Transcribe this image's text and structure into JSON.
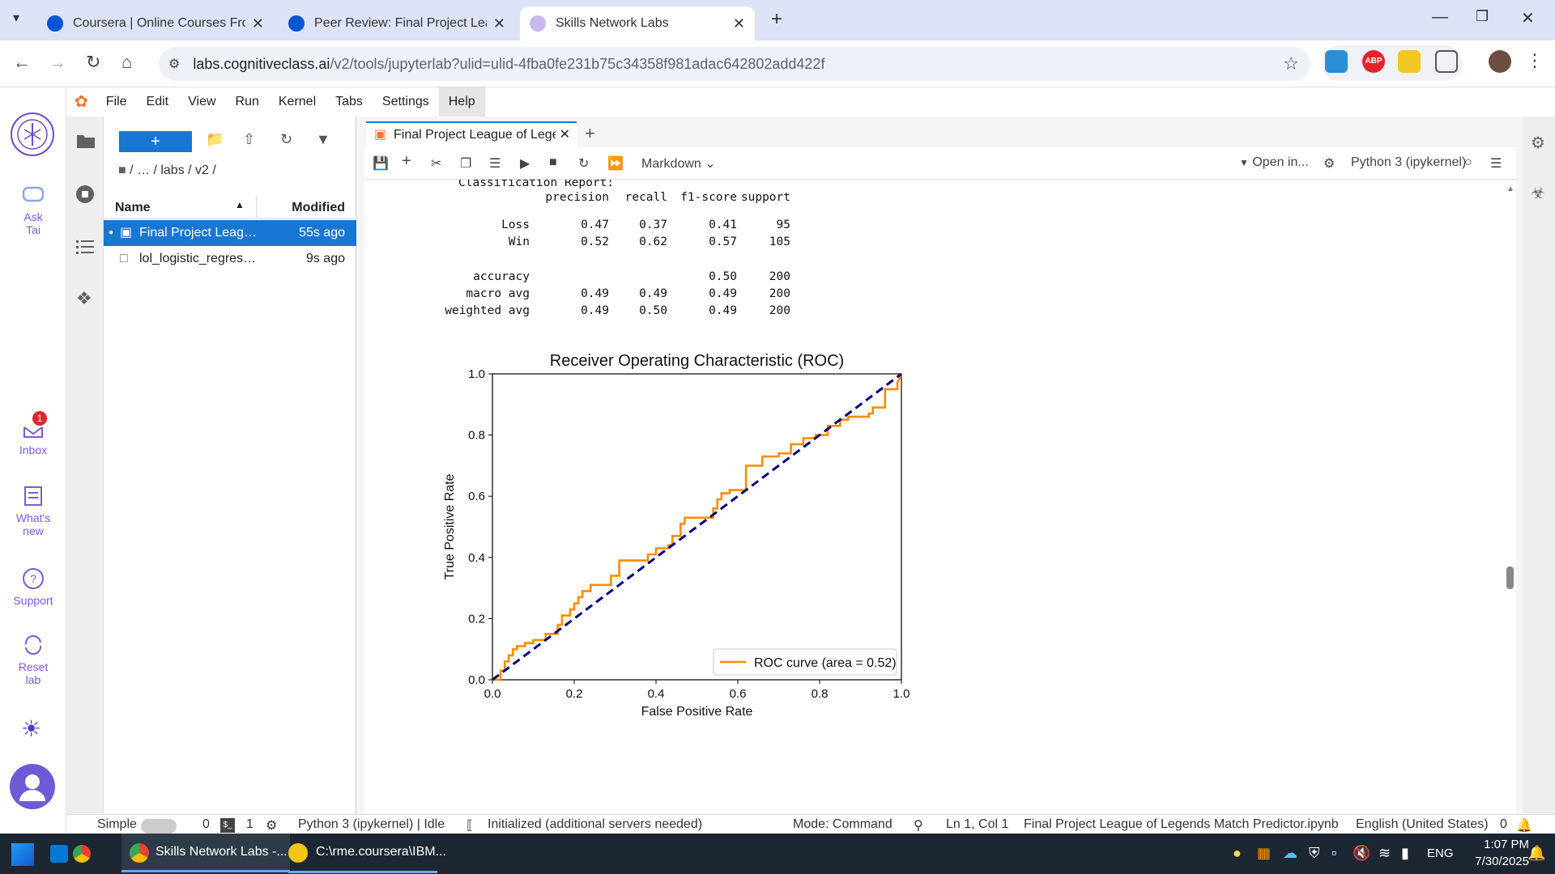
{
  "browser": {
    "tabs": [
      {
        "title": "Coursera | Online Courses From",
        "active": false
      },
      {
        "title": "Peer Review: Final Project Leagu",
        "active": false
      },
      {
        "title": "Skills Network Labs",
        "active": true
      }
    ],
    "url_host": "labs.cognitiveclass.ai",
    "url_path": "/v2/tools/jupyterlab?ulid=ulid-4fba0fe231b75c34358f981adac642802add422f"
  },
  "lab_sidebar": {
    "items": [
      {
        "label": "Ask Tai",
        "icon": "chat-bot-icon"
      },
      {
        "label": "Inbox",
        "icon": "inbox-icon",
        "badge": "1"
      },
      {
        "label": "What's new",
        "icon": "news-icon"
      },
      {
        "label": "Support",
        "icon": "help-icon"
      },
      {
        "label": "Reset lab",
        "icon": "reset-icon"
      }
    ]
  },
  "jupyter_menu": [
    "File",
    "Edit",
    "View",
    "Run",
    "Kernel",
    "Tabs",
    "Settings",
    "Help"
  ],
  "file_browser": {
    "breadcrumb": "/   …   / labs / v2 /",
    "col_name": "Name",
    "col_modified": "Modified",
    "files": [
      {
        "name": "Final Project League of Legends Match Predictor.ipynb",
        "modified": "55s ago",
        "selected": true
      },
      {
        "name": "lol_logistic_regression_model.pth",
        "modified": "9s ago",
        "selected": false
      }
    ]
  },
  "notebook": {
    "tab_title": "Final Project League of Legends",
    "cell_type": "Markdown",
    "open_in": "Open in...",
    "kernel": "Python 3 (ipykernel)"
  },
  "report": {
    "title": "Classification Report:",
    "header": [
      "precision",
      "recall",
      "f1-score",
      "support"
    ],
    "rows": [
      {
        "label": "Loss",
        "values": [
          "0.47",
          "0.37",
          "0.41",
          "95"
        ]
      },
      {
        "label": "Win",
        "values": [
          "0.52",
          "0.62",
          "0.57",
          "105"
        ]
      },
      {
        "label": "accuracy",
        "values": [
          "",
          "",
          "0.50",
          "200"
        ]
      },
      {
        "label": "macro avg",
        "values": [
          "0.49",
          "0.49",
          "0.49",
          "200"
        ]
      },
      {
        "label": "weighted avg",
        "values": [
          "0.49",
          "0.50",
          "0.49",
          "200"
        ]
      }
    ]
  },
  "chart_data": {
    "type": "line",
    "title": "Receiver Operating Characteristic (ROC)",
    "xlabel": "False Positive Rate",
    "ylabel": "True Positive Rate",
    "xlim": [
      0.0,
      1.0
    ],
    "ylim": [
      0.0,
      1.0
    ],
    "xticks": [
      "0.0",
      "0.2",
      "0.4",
      "0.6",
      "0.8",
      "1.0"
    ],
    "yticks": [
      "0.0",
      "0.2",
      "0.4",
      "0.6",
      "0.8",
      "1.0"
    ],
    "legend_position": "lower-right",
    "series": [
      {
        "name": "ROC curve (area = 0.52)",
        "color": "#ff8c00",
        "style": "solid-step",
        "x": [
          0.0,
          0.02,
          0.02,
          0.03,
          0.03,
          0.04,
          0.04,
          0.05,
          0.05,
          0.06,
          0.06,
          0.08,
          0.08,
          0.1,
          0.1,
          0.13,
          0.13,
          0.16,
          0.16,
          0.17,
          0.17,
          0.19,
          0.19,
          0.2,
          0.2,
          0.21,
          0.21,
          0.22,
          0.22,
          0.24,
          0.24,
          0.29,
          0.29,
          0.31,
          0.31,
          0.38,
          0.38,
          0.4,
          0.4,
          0.43,
          0.43,
          0.44,
          0.44,
          0.46,
          0.46,
          0.47,
          0.47,
          0.54,
          0.54,
          0.55,
          0.55,
          0.56,
          0.56,
          0.58,
          0.58,
          0.62,
          0.62,
          0.66,
          0.66,
          0.7,
          0.7,
          0.73,
          0.73,
          0.76,
          0.76,
          0.79,
          0.79,
          0.82,
          0.82,
          0.85,
          0.85,
          0.87,
          0.87,
          0.92,
          0.92,
          0.93,
          0.93,
          0.96,
          0.96,
          0.99,
          0.99,
          1.0
        ],
        "y": [
          0.0,
          0.0,
          0.03,
          0.03,
          0.06,
          0.06,
          0.08,
          0.08,
          0.1,
          0.1,
          0.11,
          0.11,
          0.12,
          0.12,
          0.13,
          0.13,
          0.15,
          0.15,
          0.18,
          0.18,
          0.21,
          0.21,
          0.23,
          0.23,
          0.25,
          0.25,
          0.27,
          0.27,
          0.29,
          0.29,
          0.31,
          0.31,
          0.34,
          0.34,
          0.39,
          0.39,
          0.41,
          0.41,
          0.43,
          0.43,
          0.44,
          0.44,
          0.47,
          0.47,
          0.51,
          0.51,
          0.53,
          0.53,
          0.56,
          0.56,
          0.59,
          0.59,
          0.61,
          0.61,
          0.62,
          0.62,
          0.7,
          0.7,
          0.73,
          0.73,
          0.74,
          0.74,
          0.77,
          0.77,
          0.79,
          0.79,
          0.8,
          0.8,
          0.83,
          0.83,
          0.85,
          0.85,
          0.86,
          0.86,
          0.87,
          0.87,
          0.89,
          0.89,
          0.95,
          0.95,
          0.97,
          1.0
        ]
      },
      {
        "name": "",
        "color": "#000080",
        "style": "dashed",
        "x": [
          0.0,
          1.0
        ],
        "y": [
          0.0,
          1.0
        ]
      }
    ]
  },
  "status_bar": {
    "mode_label": "Simple",
    "count_a": "0",
    "count_b": "1",
    "kernel_status": "Python 3 (ipykernel) | Idle",
    "init": "Initialized (additional servers needed)",
    "mode": "Mode: Command",
    "cursor": "Ln 1, Col 1",
    "filename": "Final Project League of Legends Match Predictor.ipynb",
    "language": "English (United States)",
    "notifications": "0"
  },
  "taskbar": {
    "apps": [
      {
        "label": "Skills Network Labs -..."
      },
      {
        "label": "C:\\rme.coursera\\IBM..."
      }
    ],
    "lang": "ENG",
    "time": "1:07 PM",
    "date": "7/30/2025"
  }
}
